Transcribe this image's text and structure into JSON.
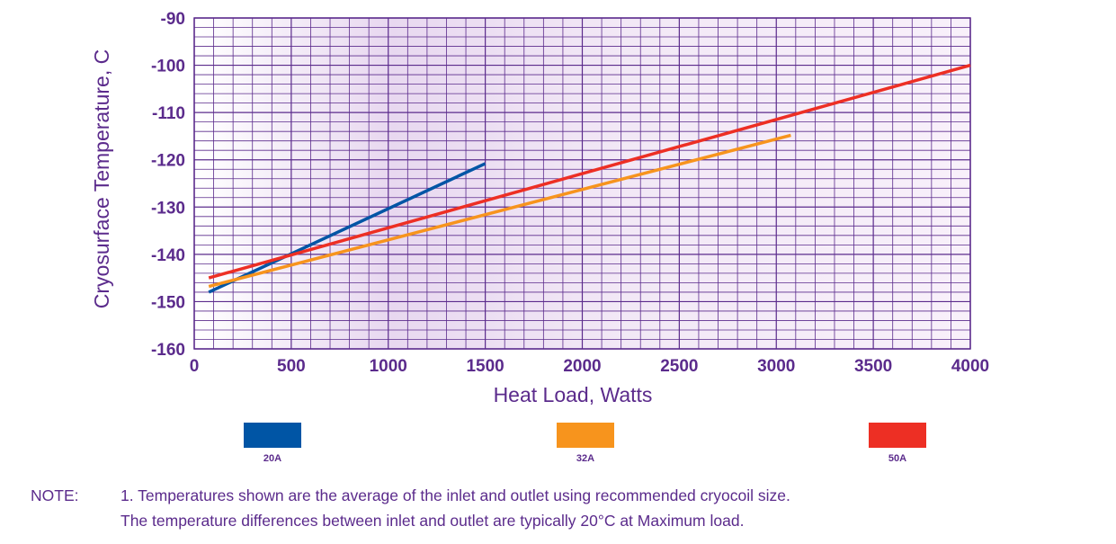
{
  "chart_data": {
    "type": "line",
    "title": "",
    "xlabel": "Heat Load, Watts",
    "ylabel": "Cryosurface Temperature, C",
    "xlim": [
      0,
      4000
    ],
    "ylim": [
      -160,
      -90
    ],
    "x_ticks": [
      "0",
      "500",
      "1000",
      "1500",
      "2000",
      "2500",
      "3000",
      "3500",
      "4000"
    ],
    "y_ticks": [
      "-90",
      "-100",
      "-110",
      "-120",
      "-130",
      "-140",
      "-150",
      "-160"
    ],
    "grid": true,
    "legend_position": "bottom",
    "series": [
      {
        "name": "20A",
        "color": "#0055a5",
        "x": [
          75,
          1500
        ],
        "y": [
          -148,
          -120.8
        ]
      },
      {
        "name": "32A",
        "color": "#f7941d",
        "x": [
          75,
          3075
        ],
        "y": [
          -146.8,
          -114.8
        ]
      },
      {
        "name": "50A",
        "color": "#ed2f24",
        "x": [
          75,
          4000
        ],
        "y": [
          -145,
          -100
        ]
      }
    ]
  },
  "note": {
    "heading": "NOTE:",
    "line1": "1. Temperatures shown are the average of the inlet and outlet using recommended cryocoil size.",
    "line2": "The temperature differences between inlet and outlet are typically 20°C at Maximum load."
  },
  "colors": {
    "text": "#5b2b8c",
    "grid": "#5b2b8c",
    "plot_bg": "#f3eaf7"
  }
}
